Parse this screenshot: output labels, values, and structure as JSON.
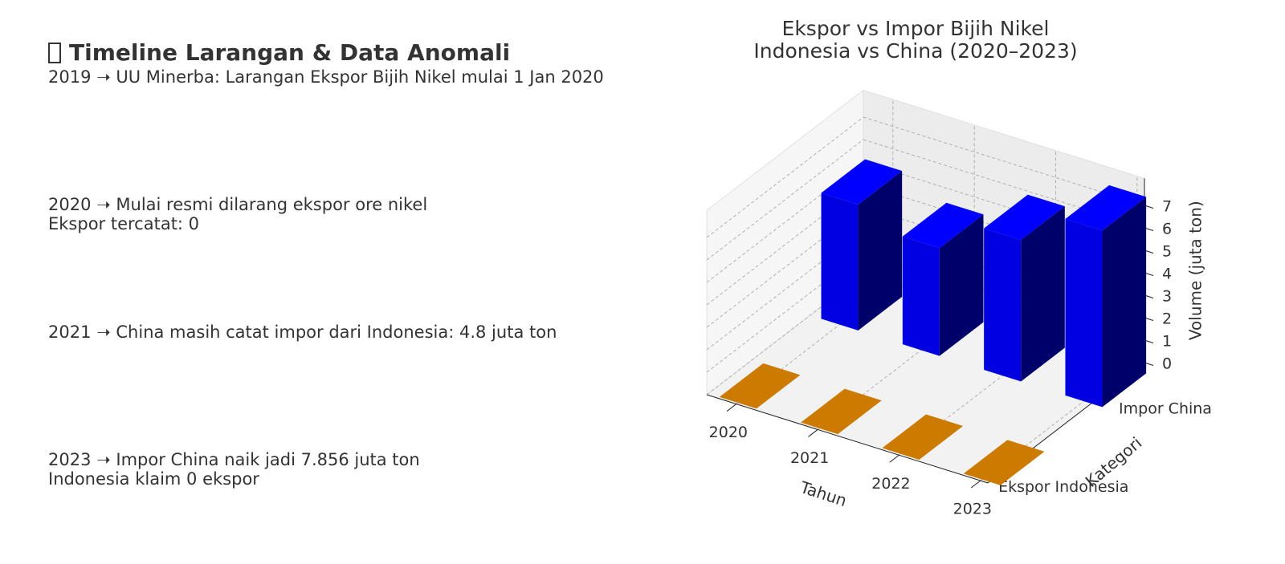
{
  "timeline": {
    "title": "Timeline Larangan & Data Anomali",
    "entries": [
      [
        "2019 ➝ UU Minerba: Larangan Ekspor Bijih Nikel mulai 1 Jan 2020"
      ],
      [
        "2020 ➝ Mulai resmi dilarang ekspor ore nikel",
        "Ekspor tercatat: 0"
      ],
      [
        "2021 ➝ China masih catat impor dari Indonesia: 4.8 juta ton"
      ],
      [
        "2023 ➝ Impor China naik jadi 7.856 juta ton",
        "Indonesia klaim 0 ekspor"
      ]
    ]
  },
  "chart_data": {
    "type": "bar3d",
    "title": "Ekspor vs Impor Bijih Nikel",
    "subtitle": "Indonesia vs China (2020–2023)",
    "categories": [
      "2020",
      "2021",
      "2022",
      "2023"
    ],
    "series": [
      {
        "name": "Ekspor Indonesia",
        "color": "#ff9900",
        "values": [
          0,
          0,
          0,
          0
        ]
      },
      {
        "name": "Impor China",
        "color": "#0000ff",
        "values": [
          5.6,
          4.8,
          6.3,
          7.856
        ]
      }
    ],
    "xlabel": "Tahun",
    "ylabel": "Kategori",
    "zlabel": "Volume (juta ton)",
    "zlim": [
      0,
      8.2
    ],
    "zticks": [
      0,
      1,
      2,
      3,
      4,
      5,
      6,
      7
    ],
    "grid": true
  }
}
